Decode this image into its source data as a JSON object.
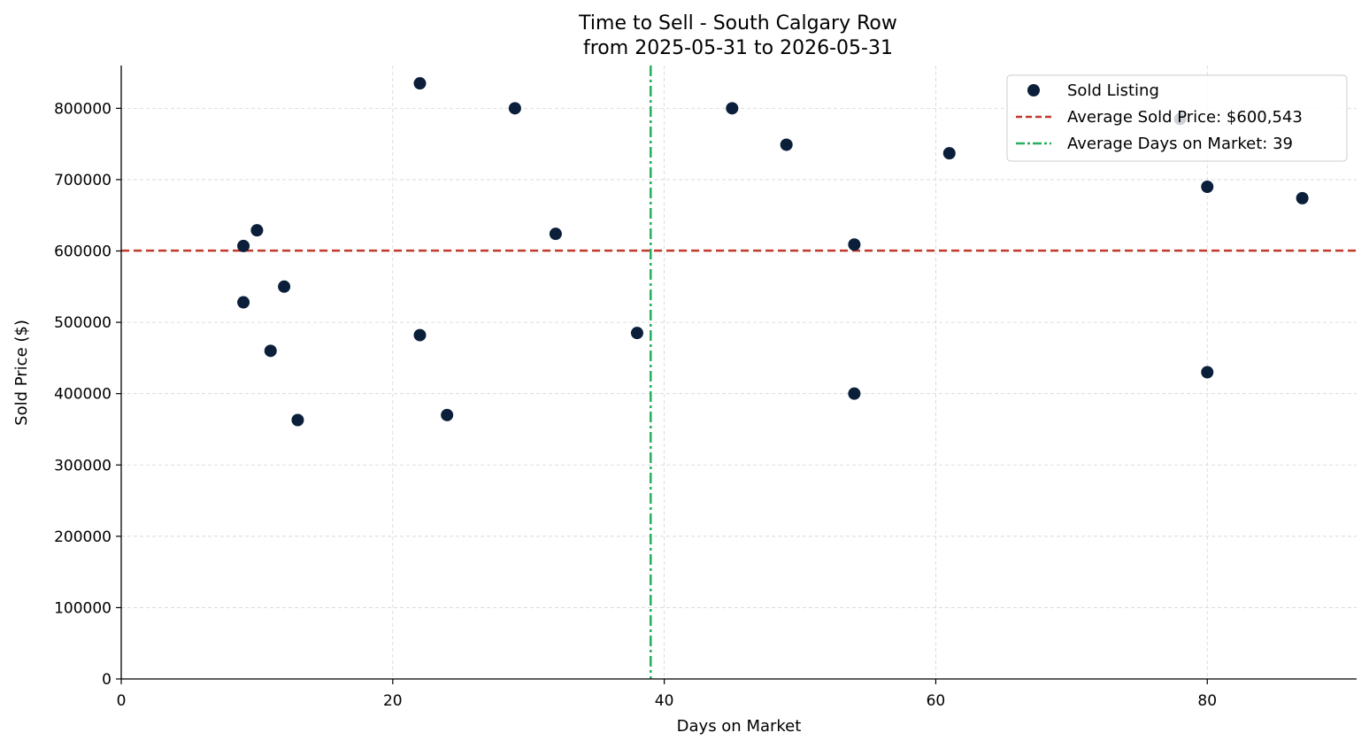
{
  "chart_data": {
    "type": "scatter",
    "title": "Time to Sell - South Calgary Row",
    "subtitle": "from 2025-05-31 to 2026-05-31",
    "xlabel": "Days on Market",
    "ylabel": "Sold Price ($)",
    "xlim": [
      0,
      91
    ],
    "ylim": [
      0,
      860000
    ],
    "xticks": [
      0,
      20,
      40,
      60,
      80
    ],
    "yticks": [
      0,
      100000,
      200000,
      300000,
      400000,
      500000,
      600000,
      700000,
      800000
    ],
    "grid": true,
    "legend_position": "top-right",
    "series": [
      {
        "name": "Sold Listing",
        "color": "#0b1f3a",
        "points": [
          {
            "x": 9,
            "y": 607000
          },
          {
            "x": 9,
            "y": 528000
          },
          {
            "x": 10,
            "y": 629000
          },
          {
            "x": 11,
            "y": 460000
          },
          {
            "x": 12,
            "y": 550000
          },
          {
            "x": 13,
            "y": 363000
          },
          {
            "x": 22,
            "y": 835000
          },
          {
            "x": 22,
            "y": 482000
          },
          {
            "x": 24,
            "y": 370000
          },
          {
            "x": 29,
            "y": 800000
          },
          {
            "x": 32,
            "y": 624000
          },
          {
            "x": 38,
            "y": 485000
          },
          {
            "x": 45,
            "y": 800000
          },
          {
            "x": 49,
            "y": 749000
          },
          {
            "x": 54,
            "y": 609000
          },
          {
            "x": 54,
            "y": 400000
          },
          {
            "x": 61,
            "y": 737000
          },
          {
            "x": 78,
            "y": 785000
          },
          {
            "x": 80,
            "y": 690000
          },
          {
            "x": 80,
            "y": 430000
          },
          {
            "x": 87,
            "y": 674000
          }
        ]
      }
    ],
    "reference_lines": [
      {
        "name": "Average Sold Price: $600,543",
        "axis": "y",
        "value": 600543,
        "color": "#c0392b",
        "style": "dashed"
      },
      {
        "name": "Average Days on Market: 39",
        "axis": "x",
        "value": 39,
        "color": "#27ae60",
        "style": "dashdot"
      }
    ]
  }
}
